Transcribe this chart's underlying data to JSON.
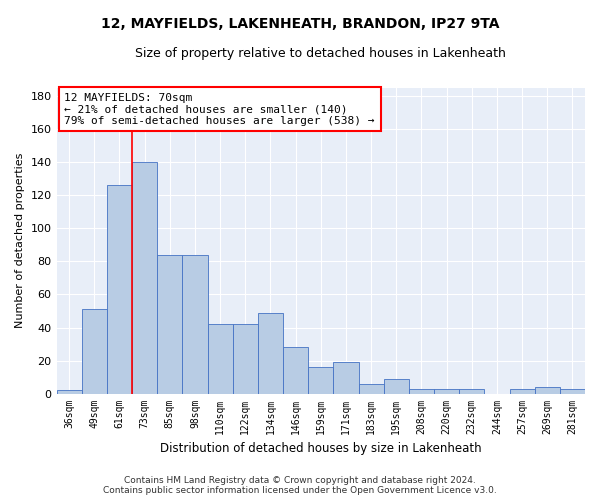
{
  "title": "12, MAYFIELDS, LAKENHEATH, BRANDON, IP27 9TA",
  "subtitle": "Size of property relative to detached houses in Lakenheath",
  "xlabel": "Distribution of detached houses by size in Lakenheath",
  "ylabel": "Number of detached properties",
  "categories": [
    "36sqm",
    "49sqm",
    "61sqm",
    "73sqm",
    "85sqm",
    "98sqm",
    "110sqm",
    "122sqm",
    "134sqm",
    "146sqm",
    "159sqm",
    "171sqm",
    "183sqm",
    "195sqm",
    "208sqm",
    "220sqm",
    "232sqm",
    "244sqm",
    "257sqm",
    "269sqm",
    "281sqm"
  ],
  "values": [
    2,
    51,
    126,
    140,
    84,
    84,
    42,
    42,
    49,
    28,
    16,
    19,
    6,
    9,
    3,
    3,
    3,
    0,
    3,
    4,
    3
  ],
  "bar_color": "#b8cce4",
  "bar_edge_color": "#4472c4",
  "vline_color": "red",
  "vline_pos": 2.5,
  "annotation_text": "12 MAYFIELDS: 70sqm\n← 21% of detached houses are smaller (140)\n79% of semi-detached houses are larger (538) →",
  "annotation_box_color": "white",
  "annotation_box_edge": "red",
  "ylim": [
    0,
    185
  ],
  "yticks": [
    0,
    20,
    40,
    60,
    80,
    100,
    120,
    140,
    160,
    180
  ],
  "bg_color": "#e8eef8",
  "footnote1": "Contains HM Land Registry data © Crown copyright and database right 2024.",
  "footnote2": "Contains public sector information licensed under the Open Government Licence v3.0."
}
